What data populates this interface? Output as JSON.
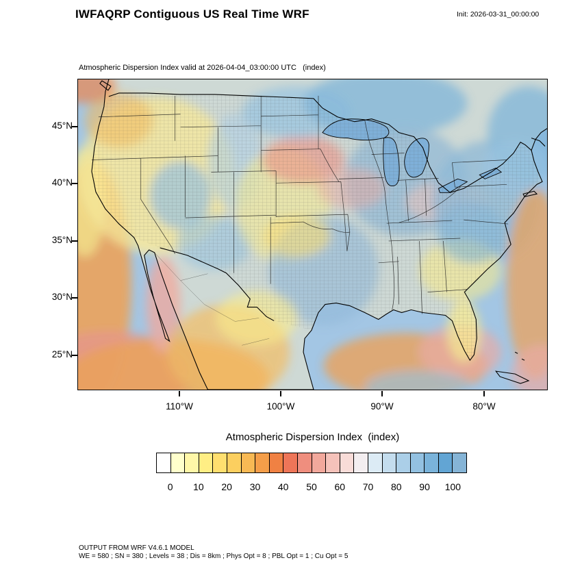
{
  "header": {
    "title": "IWFAQRP Contiguous US Real Time WRF",
    "init_label": "Init: 2026-03-31_00:00:00"
  },
  "map": {
    "subtitle": "Atmospheric Dispersion Index valid at 2026-04-04_03:00:00 UTC   (index)",
    "lat_ticks": [
      "45°N",
      "40°N",
      "35°N",
      "30°N",
      "25°N"
    ],
    "lon_ticks": [
      "110°W",
      "100°W",
      "90°W",
      "80°W"
    ],
    "base_colors": {
      "ocean": "#a3c6e4",
      "land": "#f2e9c9"
    }
  },
  "colorbar": {
    "title": "Atmospheric Dispersion Index  (index)",
    "tick_labels": [
      "0",
      "10",
      "20",
      "30",
      "40",
      "50",
      "60",
      "70",
      "80",
      "90",
      "100"
    ],
    "colors": [
      "#ffffff",
      "#ffffcc",
      "#fff7a8",
      "#ffee84",
      "#ffdf6f",
      "#fccf5f",
      "#f8b954",
      "#f59e49",
      "#f08143",
      "#ee7558",
      "#ef8e7e",
      "#f2a89c",
      "#f5c2ba",
      "#f8dcd8",
      "#f3eef0",
      "#dcebf5",
      "#c4ddee",
      "#abcfe8",
      "#93c1e1",
      "#7ab3da",
      "#62a5d4",
      "#85b4d6"
    ]
  },
  "footer": {
    "line1": "OUTPUT FROM WRF V4.6.1 MODEL",
    "line2": "WE = 580 ; SN = 380 ; Levels = 38 ; Dis = 8km ; Phys Opt = 8 ; PBL Opt = 1 ; Cu Opt = 5"
  },
  "chart_data": {
    "type": "heatmap",
    "title": "Atmospheric Dispersion Index  (index)",
    "colorbar_levels": [
      0,
      10,
      20,
      30,
      40,
      50,
      60,
      70,
      80,
      90,
      100
    ],
    "lat_ticks_deg_n": [
      45,
      40,
      35,
      30,
      25
    ],
    "lon_ticks_deg_w": [
      110,
      100,
      90,
      80
    ],
    "valid_time": "2026-04-04_03:00:00 UTC",
    "init_time": "2026-03-31_00:00:00"
  }
}
